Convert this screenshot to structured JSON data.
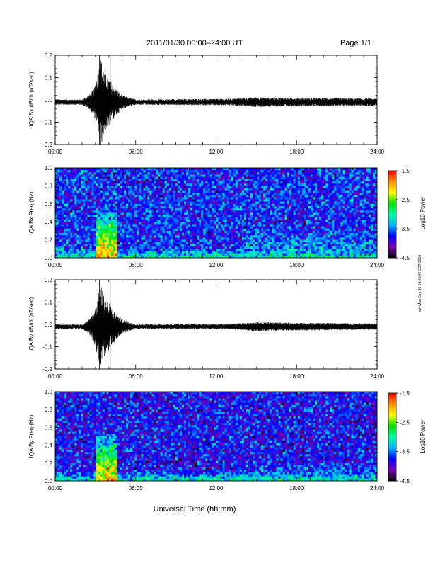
{
  "header": {
    "title": "2011/01/30  00:00–24:00 UT",
    "page": "Page 1/1"
  },
  "xlabel": "Universal Time (hh:mm)",
  "side_stamp": "mh Mon Sep 30 10:04:46 CDT 2019",
  "x_tick_labels": [
    "00:00",
    "06:00",
    "12:00",
    "18:00",
    "24:00"
  ],
  "colorbar": {
    "label": "Log10 Power",
    "tick_labels": [
      "-1.5",
      "-2.5",
      "-3.5",
      "-4.5"
    ],
    "range": [
      -4.5,
      -1.5
    ],
    "colormap": [
      "#000000",
      "#7a00b4",
      "#0000ff",
      "#00b4ff",
      "#00ffa0",
      "#00e000",
      "#ffff00",
      "#ff9000",
      "#ff0000"
    ]
  },
  "chart_data": [
    {
      "type": "line",
      "ylabel": "IQA Bx dB/dt (nT/sec)",
      "xlim": [
        0,
        24
      ],
      "ylim": [
        -0.2,
        0.2
      ],
      "y_tick_labels": [
        "0.2",
        "0.1",
        "0.0",
        "-0.1",
        "-0.2"
      ],
      "baseline": -0.01,
      "envelope": [
        {
          "t": 0.0,
          "amp": 0.012
        },
        {
          "t": 2.0,
          "amp": 0.012
        },
        {
          "t": 2.5,
          "amp": 0.03
        },
        {
          "t": 2.9,
          "amp": 0.06
        },
        {
          "t": 3.4,
          "amp": 0.2
        },
        {
          "t": 3.7,
          "amp": 0.13
        },
        {
          "t": 4.1,
          "amp": 0.1
        },
        {
          "t": 4.4,
          "amp": 0.07
        },
        {
          "t": 5.0,
          "amp": 0.03
        },
        {
          "t": 6.0,
          "amp": 0.012
        },
        {
          "t": 13.0,
          "amp": 0.015
        },
        {
          "t": 15.0,
          "amp": 0.022
        },
        {
          "t": 17.0,
          "amp": 0.02
        },
        {
          "t": 24.0,
          "amp": 0.016
        }
      ],
      "spikes": [
        {
          "t": 3.3,
          "min": -0.2,
          "max": 0.2
        },
        {
          "t": 4.1,
          "min": -0.11,
          "max": 0.2
        }
      ],
      "color": "#000000"
    },
    {
      "type": "heatmap",
      "ylabel": "IQA Bx Freq (Hz)",
      "xlim": [
        0,
        24
      ],
      "ylim": [
        0.0,
        1.0
      ],
      "y_tick_labels": [
        "1.0",
        "0.8",
        "0.6",
        "0.4",
        "0.2",
        "0.0"
      ],
      "background_log_power": -3.7,
      "features": [
        {
          "description": "low-frequency band",
          "f_max": 0.1,
          "log_power": -3.0
        },
        {
          "description": "enhancement",
          "t_start": 3.0,
          "t_end": 4.6,
          "f_max": 0.55,
          "log_power": -2.0
        },
        {
          "description": "enhancement",
          "t_start": 14.0,
          "t_end": 24.0,
          "f_max": 0.3,
          "log_power": -3.3
        }
      ]
    },
    {
      "type": "line",
      "ylabel": "IQA By dB/dt (nT/sec)",
      "xlim": [
        0,
        24
      ],
      "ylim": [
        -0.2,
        0.2
      ],
      "y_tick_labels": [
        "0.2",
        "0.1",
        "0.0",
        "-0.1",
        "-0.2"
      ],
      "baseline": -0.01,
      "envelope": [
        {
          "t": 0.0,
          "amp": 0.01
        },
        {
          "t": 2.0,
          "amp": 0.01
        },
        {
          "t": 2.5,
          "amp": 0.03
        },
        {
          "t": 2.9,
          "amp": 0.07
        },
        {
          "t": 3.4,
          "amp": 0.19
        },
        {
          "t": 3.7,
          "amp": 0.13
        },
        {
          "t": 4.1,
          "amp": 0.1
        },
        {
          "t": 4.5,
          "amp": 0.06
        },
        {
          "t": 5.1,
          "amp": 0.03
        },
        {
          "t": 6.0,
          "amp": 0.01
        },
        {
          "t": 13.0,
          "amp": 0.012
        },
        {
          "t": 15.0,
          "amp": 0.02
        },
        {
          "t": 17.0,
          "amp": 0.018
        },
        {
          "t": 24.0,
          "amp": 0.014
        }
      ],
      "spikes": [
        {
          "t": 3.3,
          "min": -0.2,
          "max": 0.2
        },
        {
          "t": 4.1,
          "min": -0.2,
          "max": 0.2
        }
      ],
      "color": "#000000"
    },
    {
      "type": "heatmap",
      "ylabel": "IQA By Freq (Hz)",
      "xlim": [
        0,
        24
      ],
      "ylim": [
        0.0,
        1.0
      ],
      "y_tick_labels": [
        "1.0",
        "0.8",
        "0.6",
        "0.4",
        "0.2",
        "0.0"
      ],
      "background_log_power": -3.8,
      "features": [
        {
          "description": "low-frequency band",
          "f_max": 0.1,
          "log_power": -3.0
        },
        {
          "description": "enhancement",
          "t_start": 3.0,
          "t_end": 4.6,
          "f_max": 0.55,
          "log_power": -2.0
        },
        {
          "description": "enhancement",
          "t_start": 14.0,
          "t_end": 24.0,
          "f_max": 0.2,
          "log_power": -3.4
        }
      ]
    }
  ]
}
